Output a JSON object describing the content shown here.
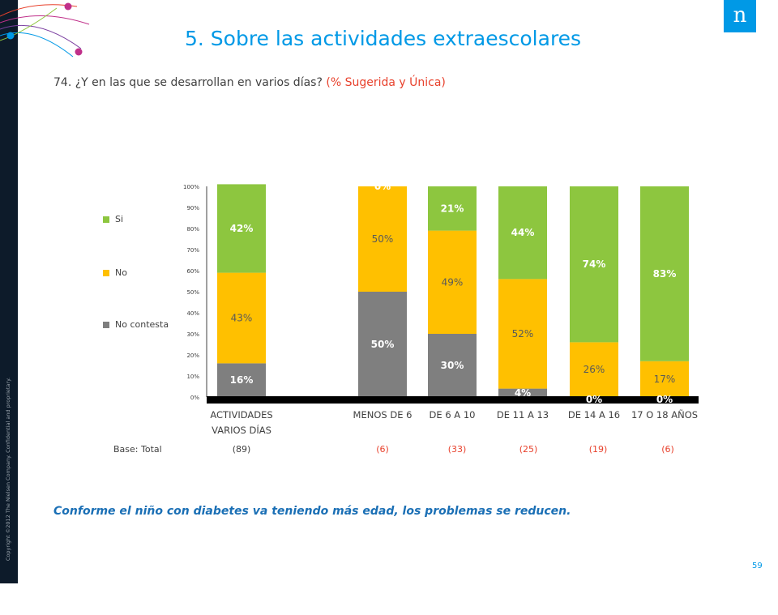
{
  "header": {
    "title": "5. Sobre las actividades extraescolares",
    "question": "74. ¿Y en las que se desarrollan en varios días?",
    "question_note": "(% Sugerida y Única)"
  },
  "logo_text": "n",
  "copyright": "Copyright ©2012 The Nielsen Company. Confidential and proprietary.",
  "chart_data": {
    "type": "bar",
    "stacked": true,
    "categories": [
      "ACTIVIDADES VARIOS DÍAS",
      "MENOS DE 6",
      "DE 6 A 10",
      "DE 11 A 13",
      "DE 14 A 16",
      "17 O 18 AÑOS"
    ],
    "category_lines": [
      [
        "ACTIVIDADES",
        "VARIOS DÍAS"
      ],
      [
        "MENOS DE 6"
      ],
      [
        "DE 6 A 10"
      ],
      [
        "DE 11  A 13"
      ],
      [
        "DE 14  A 16"
      ],
      [
        "17 O 18 AÑOS"
      ]
    ],
    "series": [
      {
        "name": "No contesta",
        "color": "#7f7f7f",
        "values": [
          16,
          50,
          30,
          4,
          0,
          0
        ]
      },
      {
        "name": "No",
        "color": "#ffc000",
        "values": [
          43,
          50,
          49,
          52,
          26,
          17
        ]
      },
      {
        "name": "Si",
        "color": "#8dc63f",
        "values": [
          42,
          0,
          21,
          44,
          74,
          83
        ]
      }
    ],
    "value_labels": [
      [
        "16%",
        "43%",
        "42%"
      ],
      [
        "50%",
        "50%",
        "0%"
      ],
      [
        "30%",
        "49%",
        "21%"
      ],
      [
        "4%",
        "52%",
        "44%"
      ],
      [
        "0%",
        "26%",
        "74%"
      ],
      [
        "0%",
        "17%",
        "83%"
      ]
    ],
    "y_ticks": [
      "0%",
      "10%",
      "20%",
      "30%",
      "40%",
      "50%",
      "60%",
      "70%",
      "80%",
      "90%",
      "100%"
    ],
    "ylim": [
      0,
      100
    ],
    "legend_position": "left",
    "grid": false
  },
  "legend": [
    {
      "label": "Si",
      "color": "#8dc63f"
    },
    {
      "label": "No",
      "color": "#ffc000"
    },
    {
      "label": "No contesta",
      "color": "#7f7f7f"
    }
  ],
  "base": {
    "label": "Base: Total",
    "values": [
      "(89)",
      "(6)",
      "(33)",
      "(25)",
      "(19)",
      "(6)"
    ]
  },
  "conclusion": "Conforme el niño con diabetes va teniendo más edad, los problemas se reducen.",
  "page_number": "59"
}
